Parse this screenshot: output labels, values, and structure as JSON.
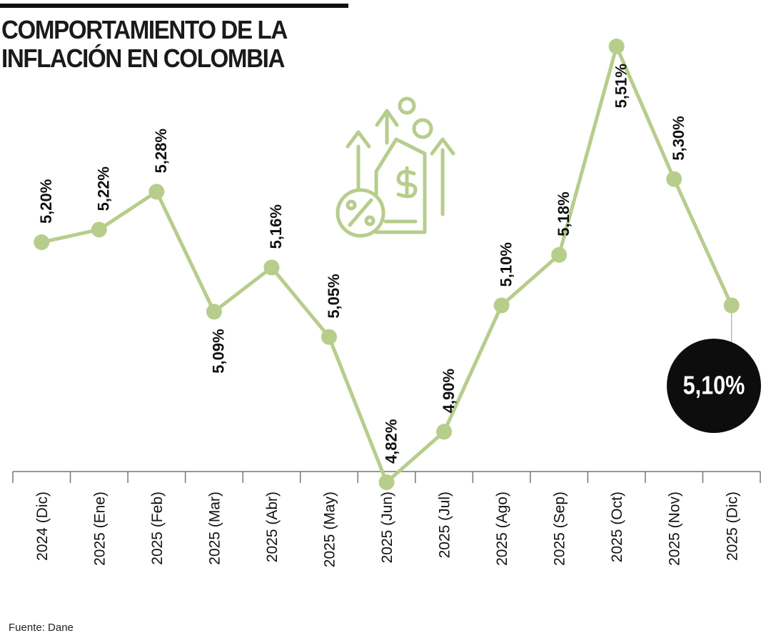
{
  "chart_data": {
    "type": "line",
    "title": "COMPORTAMIENTO DE LA INFLACIÓN EN COLOMBIA",
    "source": "Fuente: Dane",
    "categories": [
      "2024 (Dic)",
      "2025 (Ene)",
      "2025 (Feb)",
      "2025 (Mar)",
      "2025 (Abr)",
      "2025 (May)",
      "2025 (Jun)",
      "2025 (Jul)",
      "2025 (Ago)",
      "2025 (Sep)",
      "2025 (Oct)",
      "2025 (Nov)",
      "2025 (Dic)"
    ],
    "values": [
      5.2,
      5.22,
      5.28,
      5.09,
      5.16,
      5.05,
      4.82,
      4.9,
      5.1,
      5.18,
      5.51,
      5.3,
      5.1
    ],
    "value_labels": [
      "5,20%",
      "5,22%",
      "5,28%",
      "5,09%",
      "5,16%",
      "5,05%",
      "4,82%",
      "4,90%",
      "5,10%",
      "5,18%",
      "5,51%",
      "5,30%",
      "5,10%"
    ],
    "color": "#b7cd8c"
  }
}
